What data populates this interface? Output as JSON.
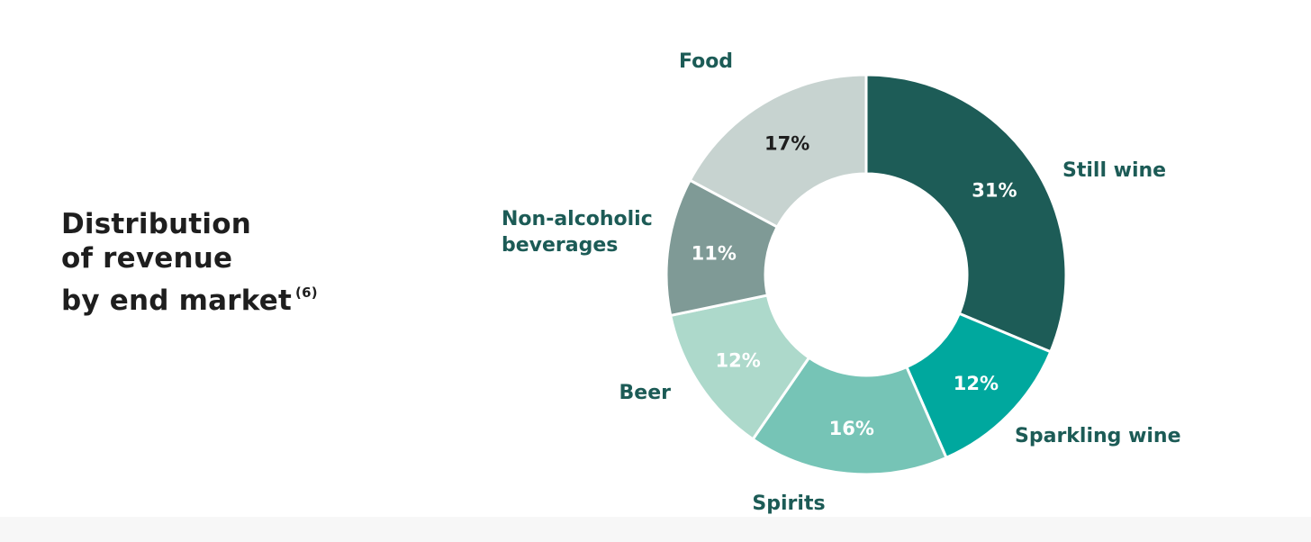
{
  "title": {
    "line1": "Distribution",
    "line2": "of revenue",
    "line3": "by end market",
    "footnote": "(6)"
  },
  "chart_data": {
    "type": "pie",
    "title": "Distribution of revenue by end market (6)",
    "donut": true,
    "slices": [
      {
        "label": "Still wine",
        "value": 31,
        "value_label": "31%",
        "color": "#1d5c57",
        "text_color": "#ffffff"
      },
      {
        "label": "Sparkling wine",
        "value": 12,
        "value_label": "12%",
        "color": "#00a89e",
        "text_color": "#ffffff"
      },
      {
        "label": "Spirits",
        "value": 16,
        "value_label": "16%",
        "color": "#76c4b6",
        "text_color": "#ffffff"
      },
      {
        "label": "Beer",
        "value": 12,
        "value_label": "12%",
        "color": "#add9cb",
        "text_color": "#ffffff"
      },
      {
        "label": "Non-alcoholic beverages",
        "label_lines": [
          "Non-alcoholic",
          "beverages"
        ],
        "value": 11,
        "value_label": "11%",
        "color": "#7f9a96",
        "text_color": "#ffffff"
      },
      {
        "label": "Food",
        "value": 17,
        "value_label": "17%",
        "color": "#c7d3d0",
        "text_color": "#1e1e1e"
      }
    ],
    "start": "top, clockwise",
    "label_color": "#1c5b56"
  }
}
